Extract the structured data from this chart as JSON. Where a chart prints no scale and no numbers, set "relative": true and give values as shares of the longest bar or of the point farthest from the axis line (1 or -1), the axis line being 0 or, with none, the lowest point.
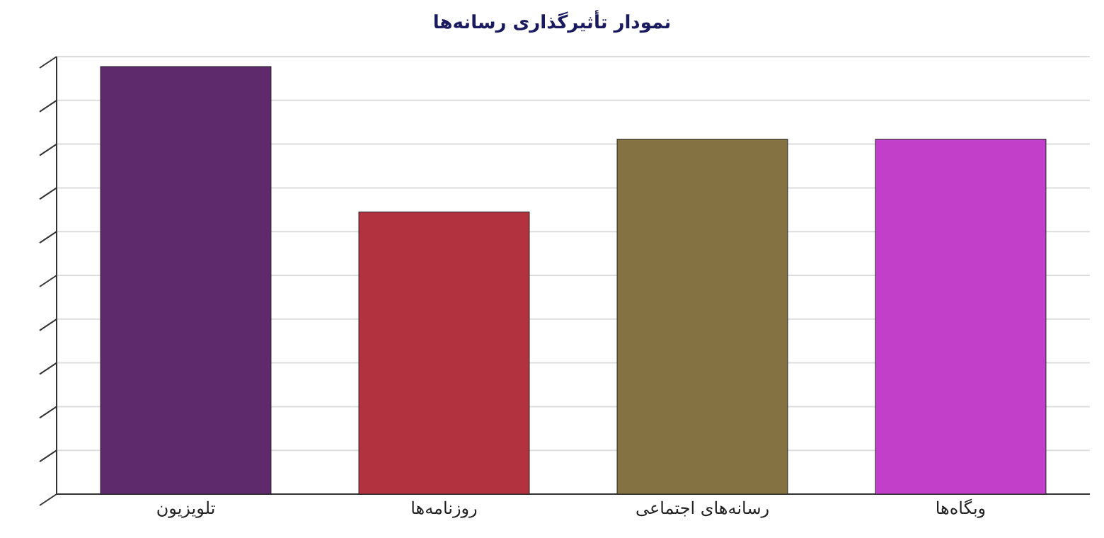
{
  "chart_data": {
    "type": "bar",
    "title": "نمودار تأثیرگذاری رسانه‌ها",
    "relative": true,
    "grid": "y",
    "categories": [
      "تلویزیون",
      "روزنامه‌ها",
      "رسانه‌های  اجتماعی",
      "وبگاه‌ها"
    ],
    "values": [
      1,
      0.66,
      0.83,
      0.83
    ],
    "colors": [
      "#5e2a6c",
      "#b3323f",
      "#857242",
      "#c23fc9"
    ]
  }
}
